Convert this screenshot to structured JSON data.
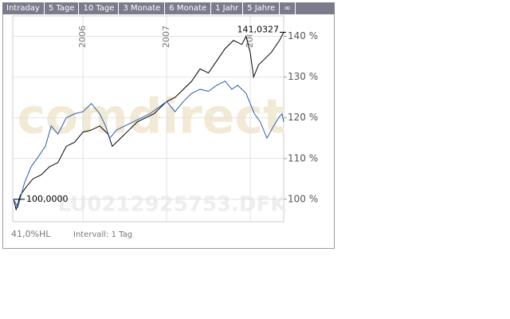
{
  "ui": {
    "tabs": [
      "Intraday",
      "5 Tage",
      "10 Tage",
      "3 Monate",
      "6 Monate",
      "1 Jahr",
      "5 Jahre",
      "∞"
    ]
  },
  "footer": {
    "range": "41,0%HL",
    "interval": "Intervall: 1 Tag"
  },
  "chart_data": {
    "type": "line",
    "watermark": "comdirect",
    "symbol": "LU0212925753.DFK",
    "annotations": [
      "100,0000",
      "141,0327"
    ],
    "xlim": [
      2005.16,
      2008.4
    ],
    "xticks": [
      2006,
      2007,
      2008
    ],
    "ylim": [
      94.5,
      145
    ],
    "yticks": [
      {
        "value": 100,
        "label": "100 %"
      },
      {
        "value": 110,
        "label": "110 %"
      },
      {
        "value": 120,
        "label": "120 %"
      },
      {
        "value": 130,
        "label": "130 %"
      },
      {
        "value": 140,
        "label": "140 %"
      }
    ],
    "grid": true,
    "series": [
      {
        "color": "#000000",
        "x": [
          2005.17,
          2005.2,
          2005.25,
          2005.32,
          2005.4,
          2005.5,
          2005.6,
          2005.7,
          2005.8,
          2005.9,
          2006.0,
          2006.1,
          2006.2,
          2006.3,
          2006.35,
          2006.45,
          2006.55,
          2006.65,
          2006.75,
          2006.85,
          2007.0,
          2007.1,
          2007.2,
          2007.3,
          2007.4,
          2007.5,
          2007.6,
          2007.7,
          2007.8,
          2007.9,
          2007.95,
          2008.0,
          2008.04,
          2008.1,
          2008.15,
          2008.25,
          2008.35,
          2008.4
        ],
        "values": [
          100,
          97.5,
          101,
          103,
          105,
          106,
          108,
          109,
          113,
          114,
          116.5,
          117,
          118,
          116,
          113,
          115,
          117,
          119,
          120,
          121,
          124,
          125,
          127,
          129,
          132,
          131,
          134,
          137,
          139,
          138,
          140,
          136,
          130,
          133,
          134,
          136,
          139,
          141
        ]
      },
      {
        "color": "#2b5ca8",
        "x": [
          2005.17,
          2005.22,
          2005.3,
          2005.38,
          2005.45,
          2005.55,
          2005.62,
          2005.7,
          2005.8,
          2005.9,
          2006.0,
          2006.1,
          2006.2,
          2006.27,
          2006.32,
          2006.4,
          2006.5,
          2006.6,
          2006.7,
          2006.8,
          2006.9,
          2007.0,
          2007.1,
          2007.2,
          2007.3,
          2007.4,
          2007.5,
          2007.6,
          2007.7,
          2007.78,
          2007.85,
          2007.95,
          2008.05,
          2008.12,
          2008.2,
          2008.28,
          2008.34,
          2008.38,
          2008.4
        ],
        "values": [
          100,
          98,
          104,
          108,
          110,
          113,
          118,
          116,
          120,
          121,
          121.5,
          123.5,
          121,
          118,
          115,
          117,
          118,
          119,
          120,
          121,
          122.5,
          124,
          121.5,
          124,
          126,
          127,
          126.5,
          128,
          129,
          127,
          128,
          126,
          121,
          119,
          115,
          118,
          120,
          121,
          119
        ]
      }
    ]
  }
}
